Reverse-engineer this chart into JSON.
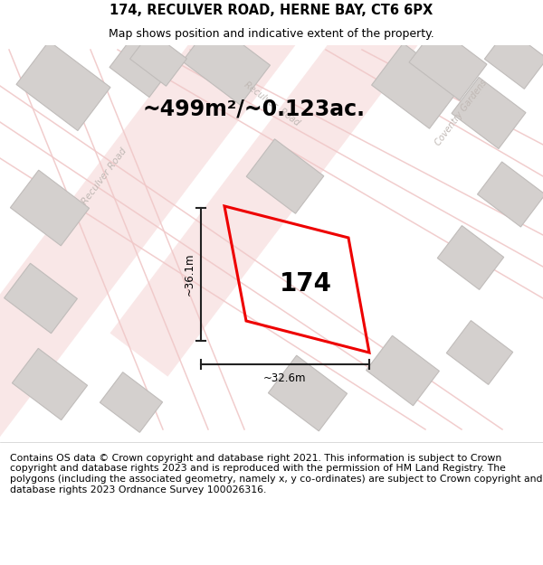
{
  "title_line1": "174, RECULVER ROAD, HERNE BAY, CT6 6PX",
  "title_line2": "Map shows position and indicative extent of the property.",
  "area_text": "~499m²/~0.123ac.",
  "property_number": "174",
  "dim_width": "~32.6m",
  "dim_height": "~36.1m",
  "footer_text": "Contains OS data © Crown copyright and database right 2021. This information is subject to Crown copyright and database rights 2023 and is reproduced with the permission of HM Land Registry. The polygons (including the associated geometry, namely x, y co-ordinates) are subject to Crown copyright and database rights 2023 Ordnance Survey 100026316.",
  "bg_color": "#e8e4e2",
  "road_color": "#f0c8c8",
  "building_color": "#d4d0ce",
  "building_edge": "#c0bcba",
  "property_fill": "none",
  "property_edge": "#ee0000",
  "dim_color": "#222222",
  "road_label_color": "#c0b8b4",
  "title_fontsize": 10.5,
  "subtitle_fontsize": 9.0,
  "area_fontsize": 17,
  "number_fontsize": 20,
  "footer_fontsize": 7.8,
  "map_border_color": "#bbbbbb"
}
